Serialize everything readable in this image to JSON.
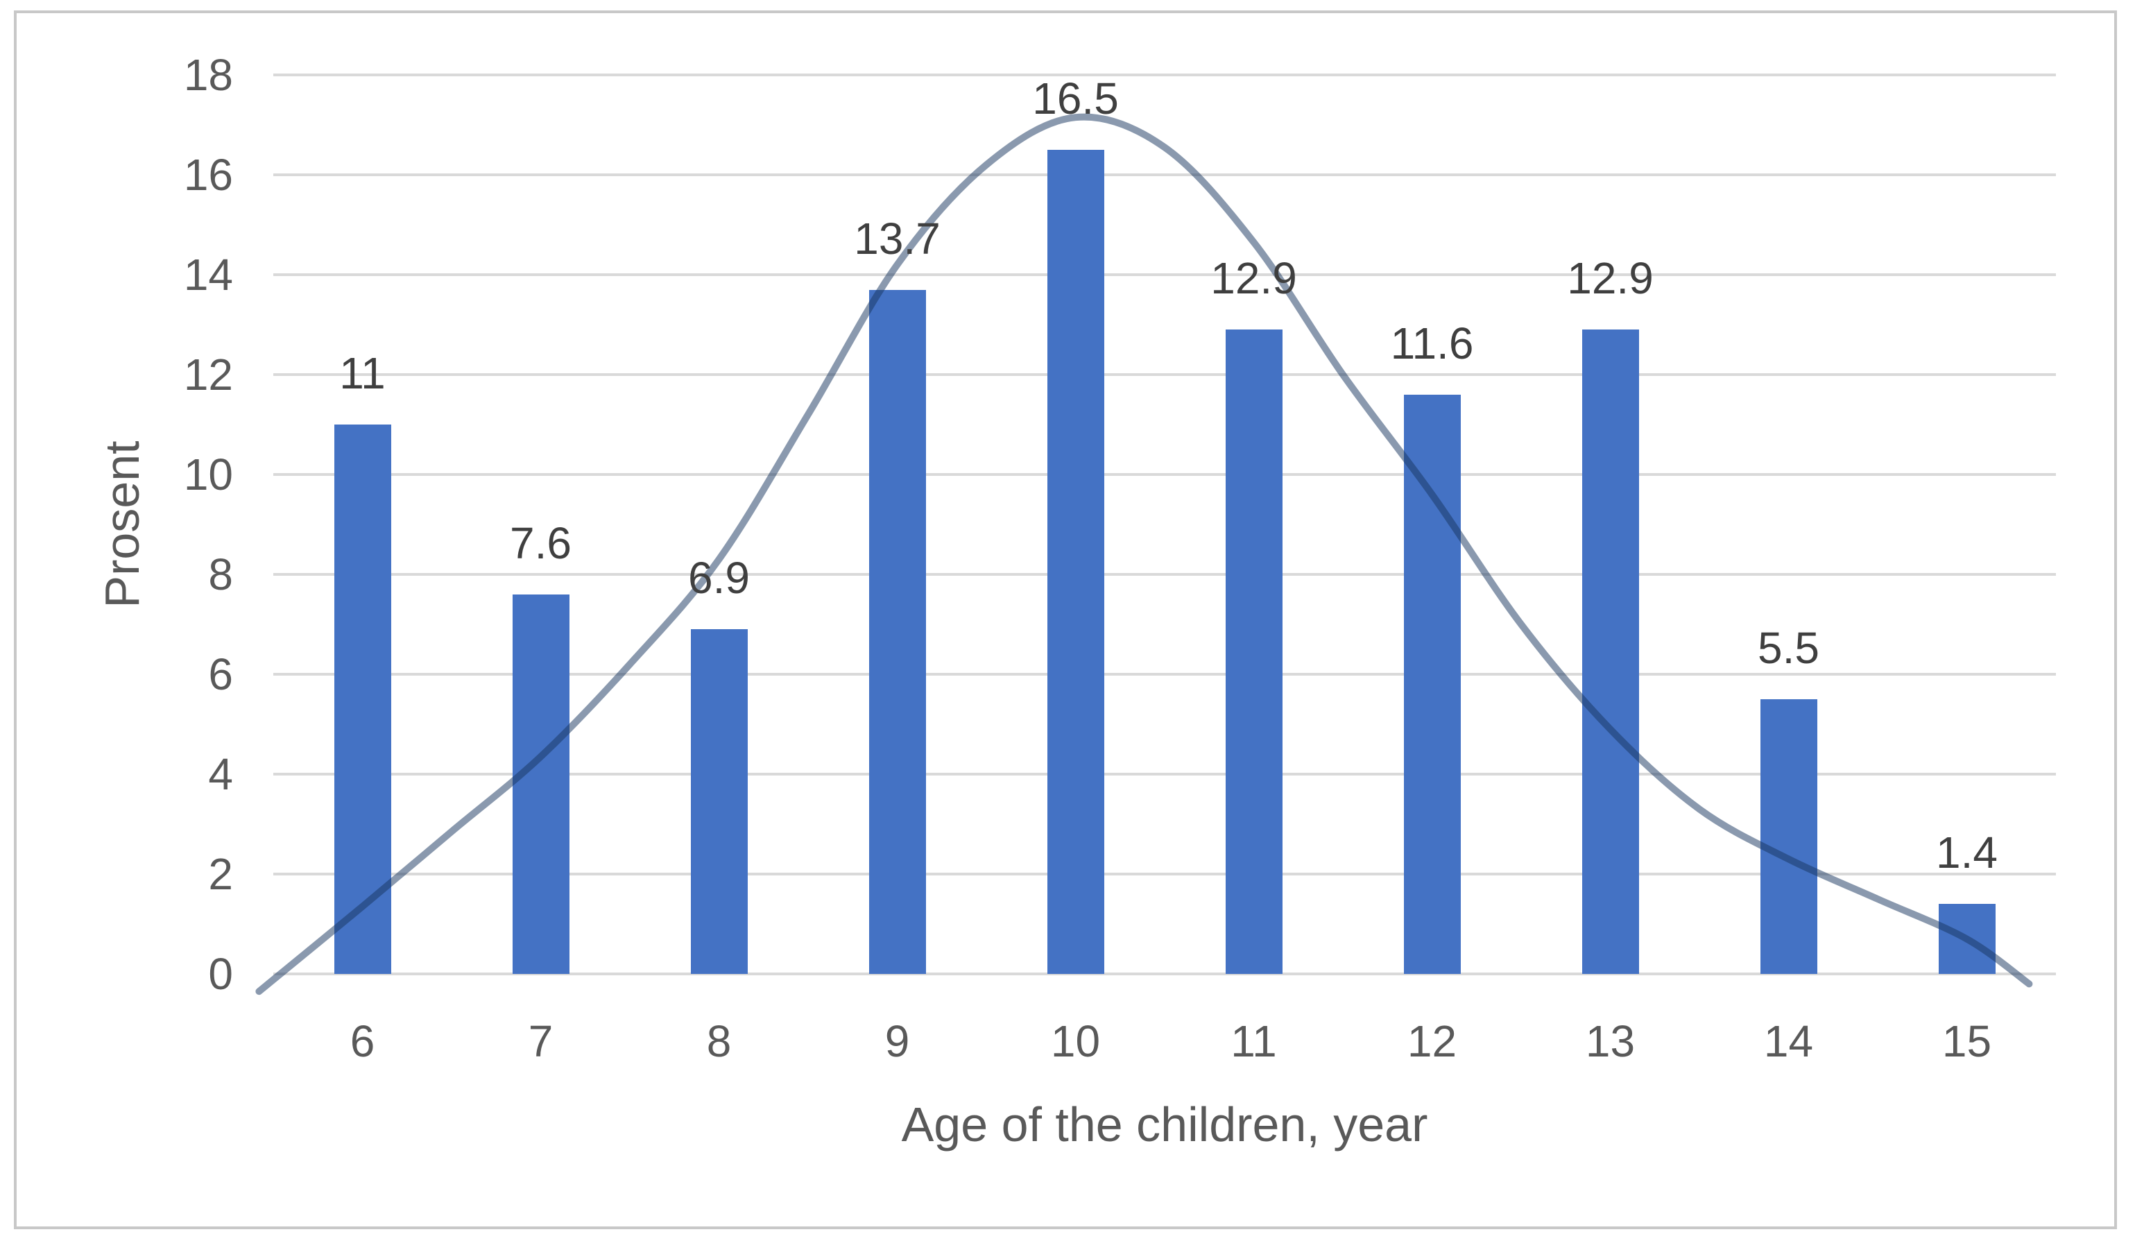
{
  "chart_data": {
    "type": "bar",
    "title": "",
    "categories": [
      "6",
      "7",
      "8",
      "9",
      "10",
      "11",
      "12",
      "13",
      "14",
      "15"
    ],
    "values": [
      11,
      7.6,
      6.9,
      13.7,
      16.5,
      12.9,
      11.6,
      12.9,
      5.5,
      1.4
    ],
    "data_labels": [
      "11",
      "7.6",
      "6.9",
      "13.7",
      "16.5",
      "12.9",
      "11.6",
      "12.9",
      "5.5",
      "1.4"
    ],
    "xlabel": "Age of the children, year",
    "ylabel": "Prosent",
    "ylim": [
      0,
      18
    ],
    "ytick_step": 2,
    "yticks": [
      "0",
      "2",
      "4",
      "6",
      "8",
      "10",
      "12",
      "14",
      "16",
      "18"
    ],
    "grid": true,
    "legend": false,
    "series": [
      {
        "name": "Prosent",
        "type": "bar",
        "values": [
          11,
          7.6,
          6.9,
          13.7,
          16.5,
          12.9,
          11.6,
          12.9,
          5.5,
          1.4
        ]
      },
      {
        "name": "smoothed-distribution-curve",
        "type": "smooth-line",
        "points": [
          [
            5.42,
            -0.35
          ],
          [
            6.0,
            1.35
          ],
          [
            6.5,
            2.85
          ],
          [
            7.0,
            4.35
          ],
          [
            7.5,
            6.2
          ],
          [
            8.0,
            8.3
          ],
          [
            8.5,
            11.2
          ],
          [
            9.0,
            14.2
          ],
          [
            9.5,
            16.2
          ],
          [
            10.0,
            17.15
          ],
          [
            10.5,
            16.55
          ],
          [
            11.0,
            14.65
          ],
          [
            11.5,
            12.0
          ],
          [
            12.0,
            9.6
          ],
          [
            12.5,
            7.0
          ],
          [
            13.0,
            4.9
          ],
          [
            13.5,
            3.3
          ],
          [
            14.0,
            2.3
          ],
          [
            14.5,
            1.5
          ],
          [
            15.0,
            0.7
          ],
          [
            15.35,
            -0.2
          ]
        ]
      }
    ],
    "colors": {
      "bar": "#4472c4",
      "curve": "rgba(21,51,94,0.5)",
      "gridline": "#d9d9d9",
      "tick_text": "#595959",
      "data_label_text": "#3f3f3f",
      "frame_border": "#c8c8c8",
      "background": "#ffffff"
    }
  }
}
